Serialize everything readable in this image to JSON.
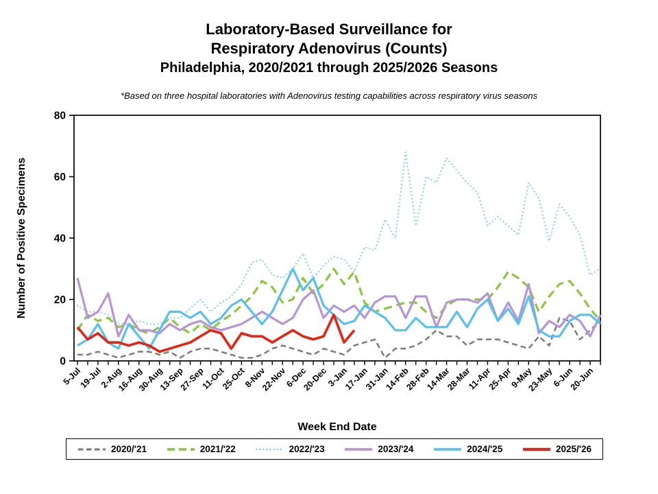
{
  "header": {
    "line1": "Laboratory-Based Surveillance for",
    "line2": "Respiratory Adenovirus (Counts)",
    "line3": "Philadelphia, 2020/2021 through 2025/2026 Seasons"
  },
  "footnote": "*Based on three hospital laboratories with Adenovirus testing capabilities across respiratory virus seasons",
  "chart_data": {
    "type": "line",
    "title": "Laboratory-Based Surveillance for Respiratory Adenovirus (Counts)",
    "subtitle": "Philadelphia, 2020/2021 through 2025/2026 Seasons",
    "xlabel": "Week End Date",
    "ylabel": "Number of Positive Specimens",
    "ylim": [
      0,
      80
    ],
    "yticks": [
      0,
      20,
      40,
      60,
      80
    ],
    "grid": false,
    "legend_position": "bottom",
    "weeks_total": 52,
    "x_tick_labels": [
      "5-Jul",
      "19-Jul",
      "2-Aug",
      "16-Aug",
      "30-Aug",
      "13-Sep",
      "27-Sep",
      "11-Oct",
      "25-Oct",
      "8-Nov",
      "22-Nov",
      "6-Dec",
      "20-Dec",
      "3-Jan",
      "17-Jan",
      "31-Jan",
      "14-Feb",
      "28-Feb",
      "14-Mar",
      "28-Mar",
      "11-Apr",
      "25-Apr",
      "9-May",
      "23-May",
      "6-Jun",
      "20-Jun"
    ],
    "series": [
      {
        "name": "2020/'21",
        "color": "#7F7F7F",
        "style": "dashed",
        "stroke_width": 2.6,
        "values": [
          2,
          2,
          3,
          2,
          1,
          2,
          3,
          3,
          2,
          3,
          1,
          3,
          4,
          4,
          3,
          2,
          1,
          1,
          2,
          4,
          5,
          4,
          3,
          2,
          4,
          3,
          2,
          5,
          6,
          7,
          1,
          4,
          4,
          5,
          7,
          10,
          8,
          8,
          5,
          7,
          7,
          7,
          6,
          5,
          4,
          8,
          5,
          14,
          13,
          7,
          10,
          13
        ]
      },
      {
        "name": "2021/'22",
        "color": "#8CC63E",
        "style": "long-dash",
        "stroke_width": 3.2,
        "values": [
          10,
          15,
          13,
          14,
          11,
          12,
          10,
          9,
          11,
          14,
          11,
          9,
          12,
          10,
          13,
          15,
          18,
          21,
          26,
          24,
          19,
          20,
          27,
          22,
          25,
          30,
          25,
          29,
          19,
          16,
          17,
          18,
          19,
          19,
          16,
          14,
          18,
          20,
          20,
          20,
          20,
          24,
          29,
          27,
          24,
          16,
          21,
          25,
          26,
          22,
          17,
          13
        ]
      },
      {
        "name": "2022/'23",
        "color": "#8ED2F0",
        "style": "dotted",
        "stroke_width": 2.4,
        "values": [
          18,
          16,
          16,
          15,
          12,
          12,
          13,
          12,
          12,
          14,
          14,
          17,
          20,
          16,
          19,
          21,
          25,
          32,
          33,
          28,
          27,
          30,
          35,
          27,
          31,
          34,
          33,
          29,
          37,
          36,
          46,
          40,
          68,
          44,
          60,
          58,
          66,
          62,
          58,
          55,
          44,
          47,
          44,
          41,
          58,
          53,
          39,
          51,
          47,
          41,
          28,
          30
        ]
      },
      {
        "name": "2023/'24",
        "color": "#B794D4",
        "style": "solid",
        "stroke_width": 3.2,
        "values": [
          27,
          14,
          16,
          22,
          8,
          15,
          10,
          10,
          9,
          12,
          10,
          12,
          13,
          11,
          10,
          11,
          12,
          14,
          16,
          14,
          12,
          14,
          20,
          23,
          14,
          18,
          16,
          18,
          14,
          19,
          21,
          21,
          14,
          21,
          21,
          11,
          19,
          20,
          20,
          19,
          22,
          13,
          19,
          13,
          25,
          9,
          13,
          11,
          15,
          13,
          8,
          15
        ]
      },
      {
        "name": "2024/'25",
        "color": "#58BFEF",
        "style": "solid",
        "stroke_width": 3.2,
        "values": [
          5,
          7,
          12,
          6,
          4,
          12,
          8,
          4,
          10,
          16,
          16,
          14,
          16,
          12,
          14,
          18,
          20,
          16,
          12,
          16,
          23,
          30,
          23,
          27,
          18,
          15,
          12,
          13,
          18,
          16,
          14,
          10,
          10,
          14,
          11,
          11,
          11,
          16,
          11,
          17,
          20,
          13,
          17,
          12,
          21,
          10,
          8,
          8,
          13,
          15,
          15,
          12
        ]
      },
      {
        "name": "2025/'26",
        "color": "#DE2918",
        "style": "solid",
        "stroke_width": 3.7,
        "values": [
          11,
          7,
          9,
          6,
          6,
          5,
          6,
          5,
          3,
          4,
          5,
          6,
          8,
          10,
          9,
          4,
          9,
          8,
          8,
          6,
          8,
          10,
          8,
          7,
          8,
          15,
          6,
          10
        ]
      }
    ]
  }
}
